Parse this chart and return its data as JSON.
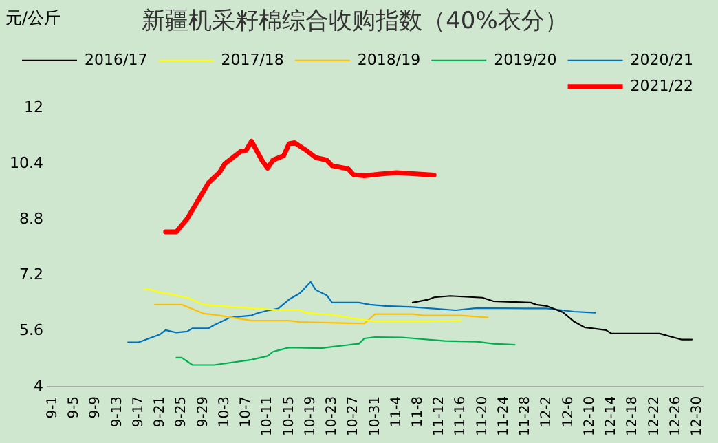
{
  "chart_data": {
    "type": "line",
    "title": "新疆机采籽棉综合收购指数（40%衣分）",
    "ylabel": "元/公斤",
    "xlim": [
      "--08-31",
      "--12-31"
    ],
    "xticks": [
      {
        "value": "--09-01",
        "label": "9-1"
      },
      {
        "value": "--09-05",
        "label": "9-5"
      },
      {
        "value": "--09-09",
        "label": "9-9"
      },
      {
        "value": "--09-13",
        "label": "9-13"
      },
      {
        "value": "--09-17",
        "label": "9-17"
      },
      {
        "value": "--09-21",
        "label": "9-21"
      },
      {
        "value": "--09-25",
        "label": "9-25"
      },
      {
        "value": "--09-29",
        "label": "9-29"
      },
      {
        "value": "--10-03",
        "label": "10-3"
      },
      {
        "value": "--10-07",
        "label": "10-7"
      },
      {
        "value": "--10-11",
        "label": "10-11"
      },
      {
        "value": "--10-15",
        "label": "10-15"
      },
      {
        "value": "--10-19",
        "label": "10-19"
      },
      {
        "value": "--10-23",
        "label": "10-23"
      },
      {
        "value": "--10-27",
        "label": "10-27"
      },
      {
        "value": "--10-31",
        "label": "10-31"
      },
      {
        "value": "--11-04",
        "label": "11-4"
      },
      {
        "value": "--11-08",
        "label": "11-8"
      },
      {
        "value": "--11-12",
        "label": "11-12"
      },
      {
        "value": "--11-16",
        "label": "11-16"
      },
      {
        "value": "--11-20",
        "label": "11-20"
      },
      {
        "value": "--11-24",
        "label": "11-24"
      },
      {
        "value": "--11-28",
        "label": "11-28"
      },
      {
        "value": "--12-02",
        "label": "12-2"
      },
      {
        "value": "--12-06",
        "label": "12-6"
      },
      {
        "value": "--12-10",
        "label": "12-10"
      },
      {
        "value": "--12-14",
        "label": "12-14"
      },
      {
        "value": "--12-18",
        "label": "12-18"
      },
      {
        "value": "--12-22",
        "label": "12-22"
      },
      {
        "value": "--12-26",
        "label": "12-26"
      },
      {
        "value": "--12-30",
        "label": "12-30"
      }
    ],
    "ylim": [
      4,
      12
    ],
    "yticks": [
      4,
      5.6,
      7.2,
      8.8,
      10.4,
      12
    ],
    "grid": false,
    "legend": "top",
    "marker": "none",
    "line_style": "solid",
    "series": [
      {
        "name": "2016/17",
        "color": "#000000",
        "x": [
          "--11-07",
          "--11-10",
          "--11-11",
          "--11-14",
          "--11-20",
          "--11-22",
          "--11-29",
          "--11-30",
          "--12-02",
          "--12-05",
          "--12-07",
          "--12-09",
          "--12-13",
          "--12-14",
          "--12-23",
          "--12-27",
          "--12-29"
        ],
        "values": [
          6.41,
          6.5,
          6.56,
          6.6,
          6.55,
          6.45,
          6.41,
          6.35,
          6.31,
          6.13,
          5.87,
          5.7,
          5.62,
          5.52,
          5.52,
          5.35,
          5.35
        ]
      },
      {
        "name": "2017/18",
        "color": "#ffff00",
        "x": [
          "--09-18",
          "--09-19",
          "--09-21",
          "--09-23",
          "--09-25",
          "--09-26",
          "--09-29",
          "--10-04",
          "--10-13",
          "--10-17",
          "--10-18",
          "--10-23",
          "--10-28",
          "--10-31",
          "--11-10",
          "--11-16"
        ],
        "values": [
          6.79,
          6.79,
          6.7,
          6.65,
          6.58,
          6.56,
          6.35,
          6.29,
          6.2,
          6.2,
          6.12,
          6.06,
          5.93,
          5.87,
          5.87,
          5.9
        ]
      },
      {
        "name": "2018/19",
        "color": "#ffc000",
        "x": [
          "--09-20",
          "--09-25",
          "--09-29",
          "--10-02",
          "--10-08",
          "--10-15",
          "--10-17",
          "--10-29",
          "--10-31",
          "--11-07",
          "--11-09",
          "--11-16",
          "--11-21"
        ],
        "values": [
          6.35,
          6.35,
          6.1,
          6.04,
          5.89,
          5.89,
          5.85,
          5.81,
          6.08,
          6.08,
          6.04,
          6.04,
          5.98
        ]
      },
      {
        "name": "2019/20",
        "color": "#00b050",
        "x": [
          "--09-24",
          "--09-25",
          "--09-27",
          "--10-01",
          "--10-08",
          "--10-11",
          "--10-12",
          "--10-15",
          "--10-21",
          "--10-23",
          "--10-28",
          "--10-29",
          "--10-31",
          "--11-05",
          "--11-13",
          "--11-19",
          "--11-22",
          "--11-26"
        ],
        "values": [
          4.83,
          4.83,
          4.62,
          4.62,
          4.77,
          4.88,
          5.0,
          5.12,
          5.1,
          5.14,
          5.23,
          5.38,
          5.42,
          5.41,
          5.31,
          5.29,
          5.23,
          5.2
        ]
      },
      {
        "name": "2020/21",
        "color": "#0070c0",
        "x": [
          "--09-15",
          "--09-17",
          "--09-21",
          "--09-22",
          "--09-24",
          "--09-26",
          "--09-27",
          "--09-30",
          "--10-01",
          "--10-04",
          "--10-08",
          "--10-09",
          "--10-11",
          "--10-13",
          "--10-15",
          "--10-17",
          "--10-19",
          "--10-20",
          "--10-22",
          "--10-23",
          "--10-28",
          "--10-30",
          "--11-02",
          "--11-07",
          "--11-15",
          "--11-19",
          "--12-02",
          "--12-07",
          "--12-11"
        ],
        "values": [
          5.27,
          5.27,
          5.5,
          5.62,
          5.55,
          5.58,
          5.67,
          5.67,
          5.76,
          5.98,
          6.04,
          6.1,
          6.18,
          6.24,
          6.5,
          6.68,
          7.0,
          6.77,
          6.62,
          6.41,
          6.41,
          6.35,
          6.31,
          6.28,
          6.19,
          6.25,
          6.24,
          6.15,
          6.12
        ]
      },
      {
        "name": "2021/22",
        "color": "#ff0000",
        "x": [
          "--09-22",
          "--09-24",
          "--09-26",
          "--09-28",
          "--09-30",
          "--10-02",
          "--10-03",
          "--10-06",
          "--10-07",
          "--10-08",
          "--10-10",
          "--10-11",
          "--10-12",
          "--10-14",
          "--10-15",
          "--10-16",
          "--10-18",
          "--10-20",
          "--10-22",
          "--10-23",
          "--10-26",
          "--10-27",
          "--10-29",
          "--11-01",
          "--11-04",
          "--11-11"
        ],
        "values": [
          8.44,
          8.44,
          8.81,
          9.33,
          9.85,
          10.14,
          10.39,
          10.75,
          10.78,
          11.04,
          10.48,
          10.27,
          10.5,
          10.63,
          10.97,
          11.0,
          10.8,
          10.57,
          10.5,
          10.34,
          10.25,
          10.08,
          10.05,
          10.1,
          10.14,
          10.07
        ]
      }
    ]
  }
}
